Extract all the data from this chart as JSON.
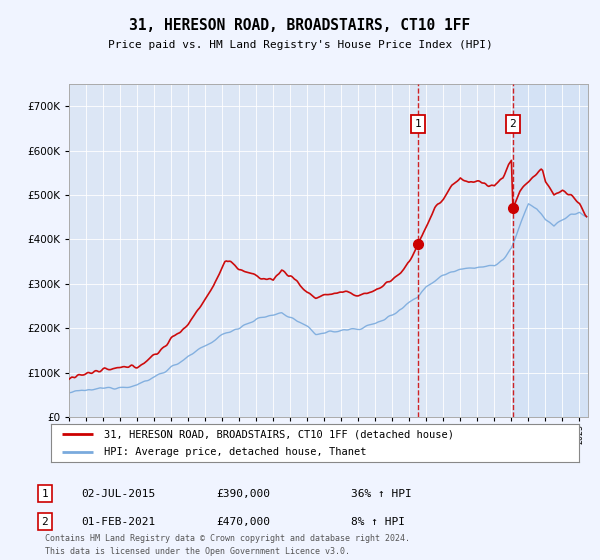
{
  "title": "31, HERESON ROAD, BROADSTAIRS, CT10 1FF",
  "subtitle": "Price paid vs. HM Land Registry's House Price Index (HPI)",
  "red_label": "31, HERESON ROAD, BROADSTAIRS, CT10 1FF (detached house)",
  "blue_label": "HPI: Average price, detached house, Thanet",
  "sale1_date": "02-JUL-2015",
  "sale1_price": 390000,
  "sale1_hpi": "36% ↑ HPI",
  "sale2_date": "01-FEB-2021",
  "sale2_price": 470000,
  "sale2_hpi": "8% ↑ HPI",
  "sale1_year": 2015.5,
  "sale2_year": 2021.08,
  "ylim": [
    0,
    750000
  ],
  "xlim_start": 1995,
  "xlim_end": 2025.5,
  "footer": "Contains HM Land Registry data © Crown copyright and database right 2024.\nThis data is licensed under the Open Government Licence v3.0.",
  "background_color": "#f0f4ff",
  "plot_bg_color": "#dce6f5",
  "shade_color": "#c8d8f0",
  "red_color": "#cc0000",
  "blue_color": "#7aaadd"
}
